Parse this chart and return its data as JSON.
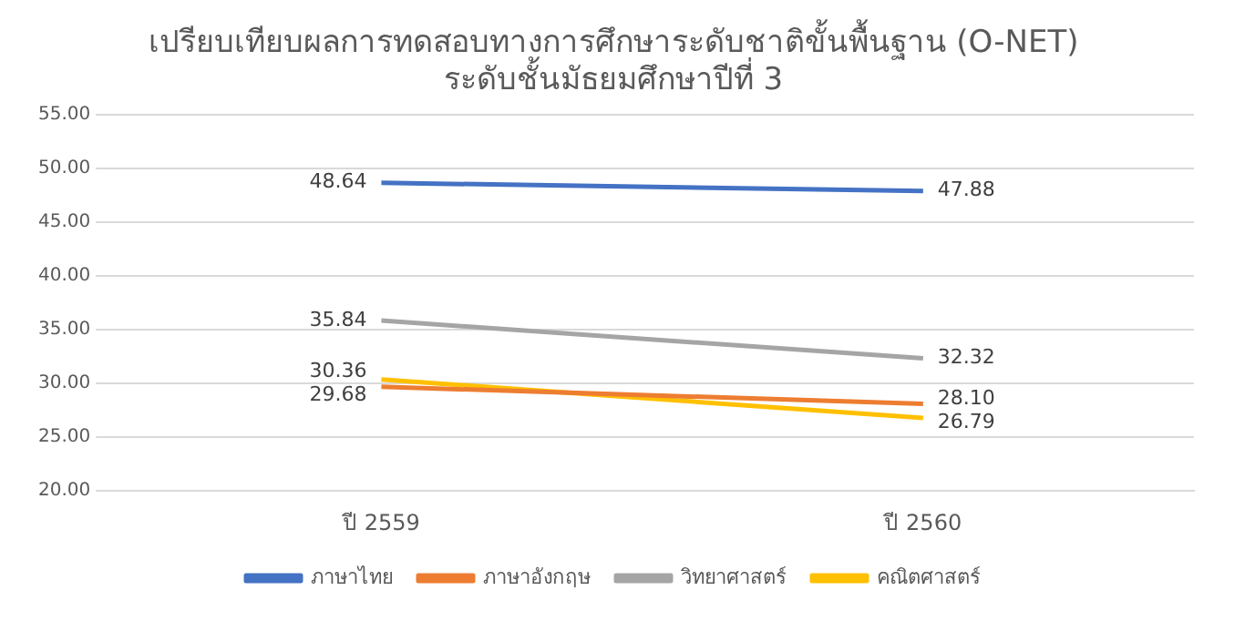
{
  "chart_data": {
    "type": "line",
    "title": "เปรียบเทียบผลการทดสอบทางการศึกษาระดับชาติขั้นพื้นฐาน (O-NET)\nระดับชั้นมัธยมศึกษาปีที่ 3",
    "categories": [
      "ปี 2559",
      "ปี 2560"
    ],
    "series": [
      {
        "name": "ภาษาไทย",
        "color": "#4472c4",
        "values": [
          48.64,
          47.88
        ],
        "value_labels": [
          "48.64",
          "47.88"
        ]
      },
      {
        "name": "ภาษาอังกฤษ",
        "color": "#ed7d31",
        "values": [
          29.68,
          28.1
        ],
        "value_labels": [
          "29.68",
          "28.10"
        ]
      },
      {
        "name": "วิทยาศาสตร์",
        "color": "#a5a5a5",
        "values": [
          35.84,
          32.32
        ],
        "value_labels": [
          "35.84",
          "32.32"
        ]
      },
      {
        "name": "คณิตศาสตร์",
        "color": "#ffc000",
        "values": [
          30.36,
          26.79
        ],
        "value_labels": [
          "30.36",
          "26.79"
        ]
      }
    ],
    "ylim": [
      20,
      55
    ],
    "yticks": [
      {
        "value": 20,
        "label": "20.00"
      },
      {
        "value": 25,
        "label": "25.00"
      },
      {
        "value": 30,
        "label": "30.00"
      },
      {
        "value": 35,
        "label": "35.00"
      },
      {
        "value": 40,
        "label": "40.00"
      },
      {
        "value": 45,
        "label": "45.00"
      },
      {
        "value": 50,
        "label": "50.00"
      },
      {
        "value": 55,
        "label": "55.00"
      }
    ],
    "grid": "y",
    "legend": "bottom",
    "marker": "none",
    "line_style": "solid"
  }
}
